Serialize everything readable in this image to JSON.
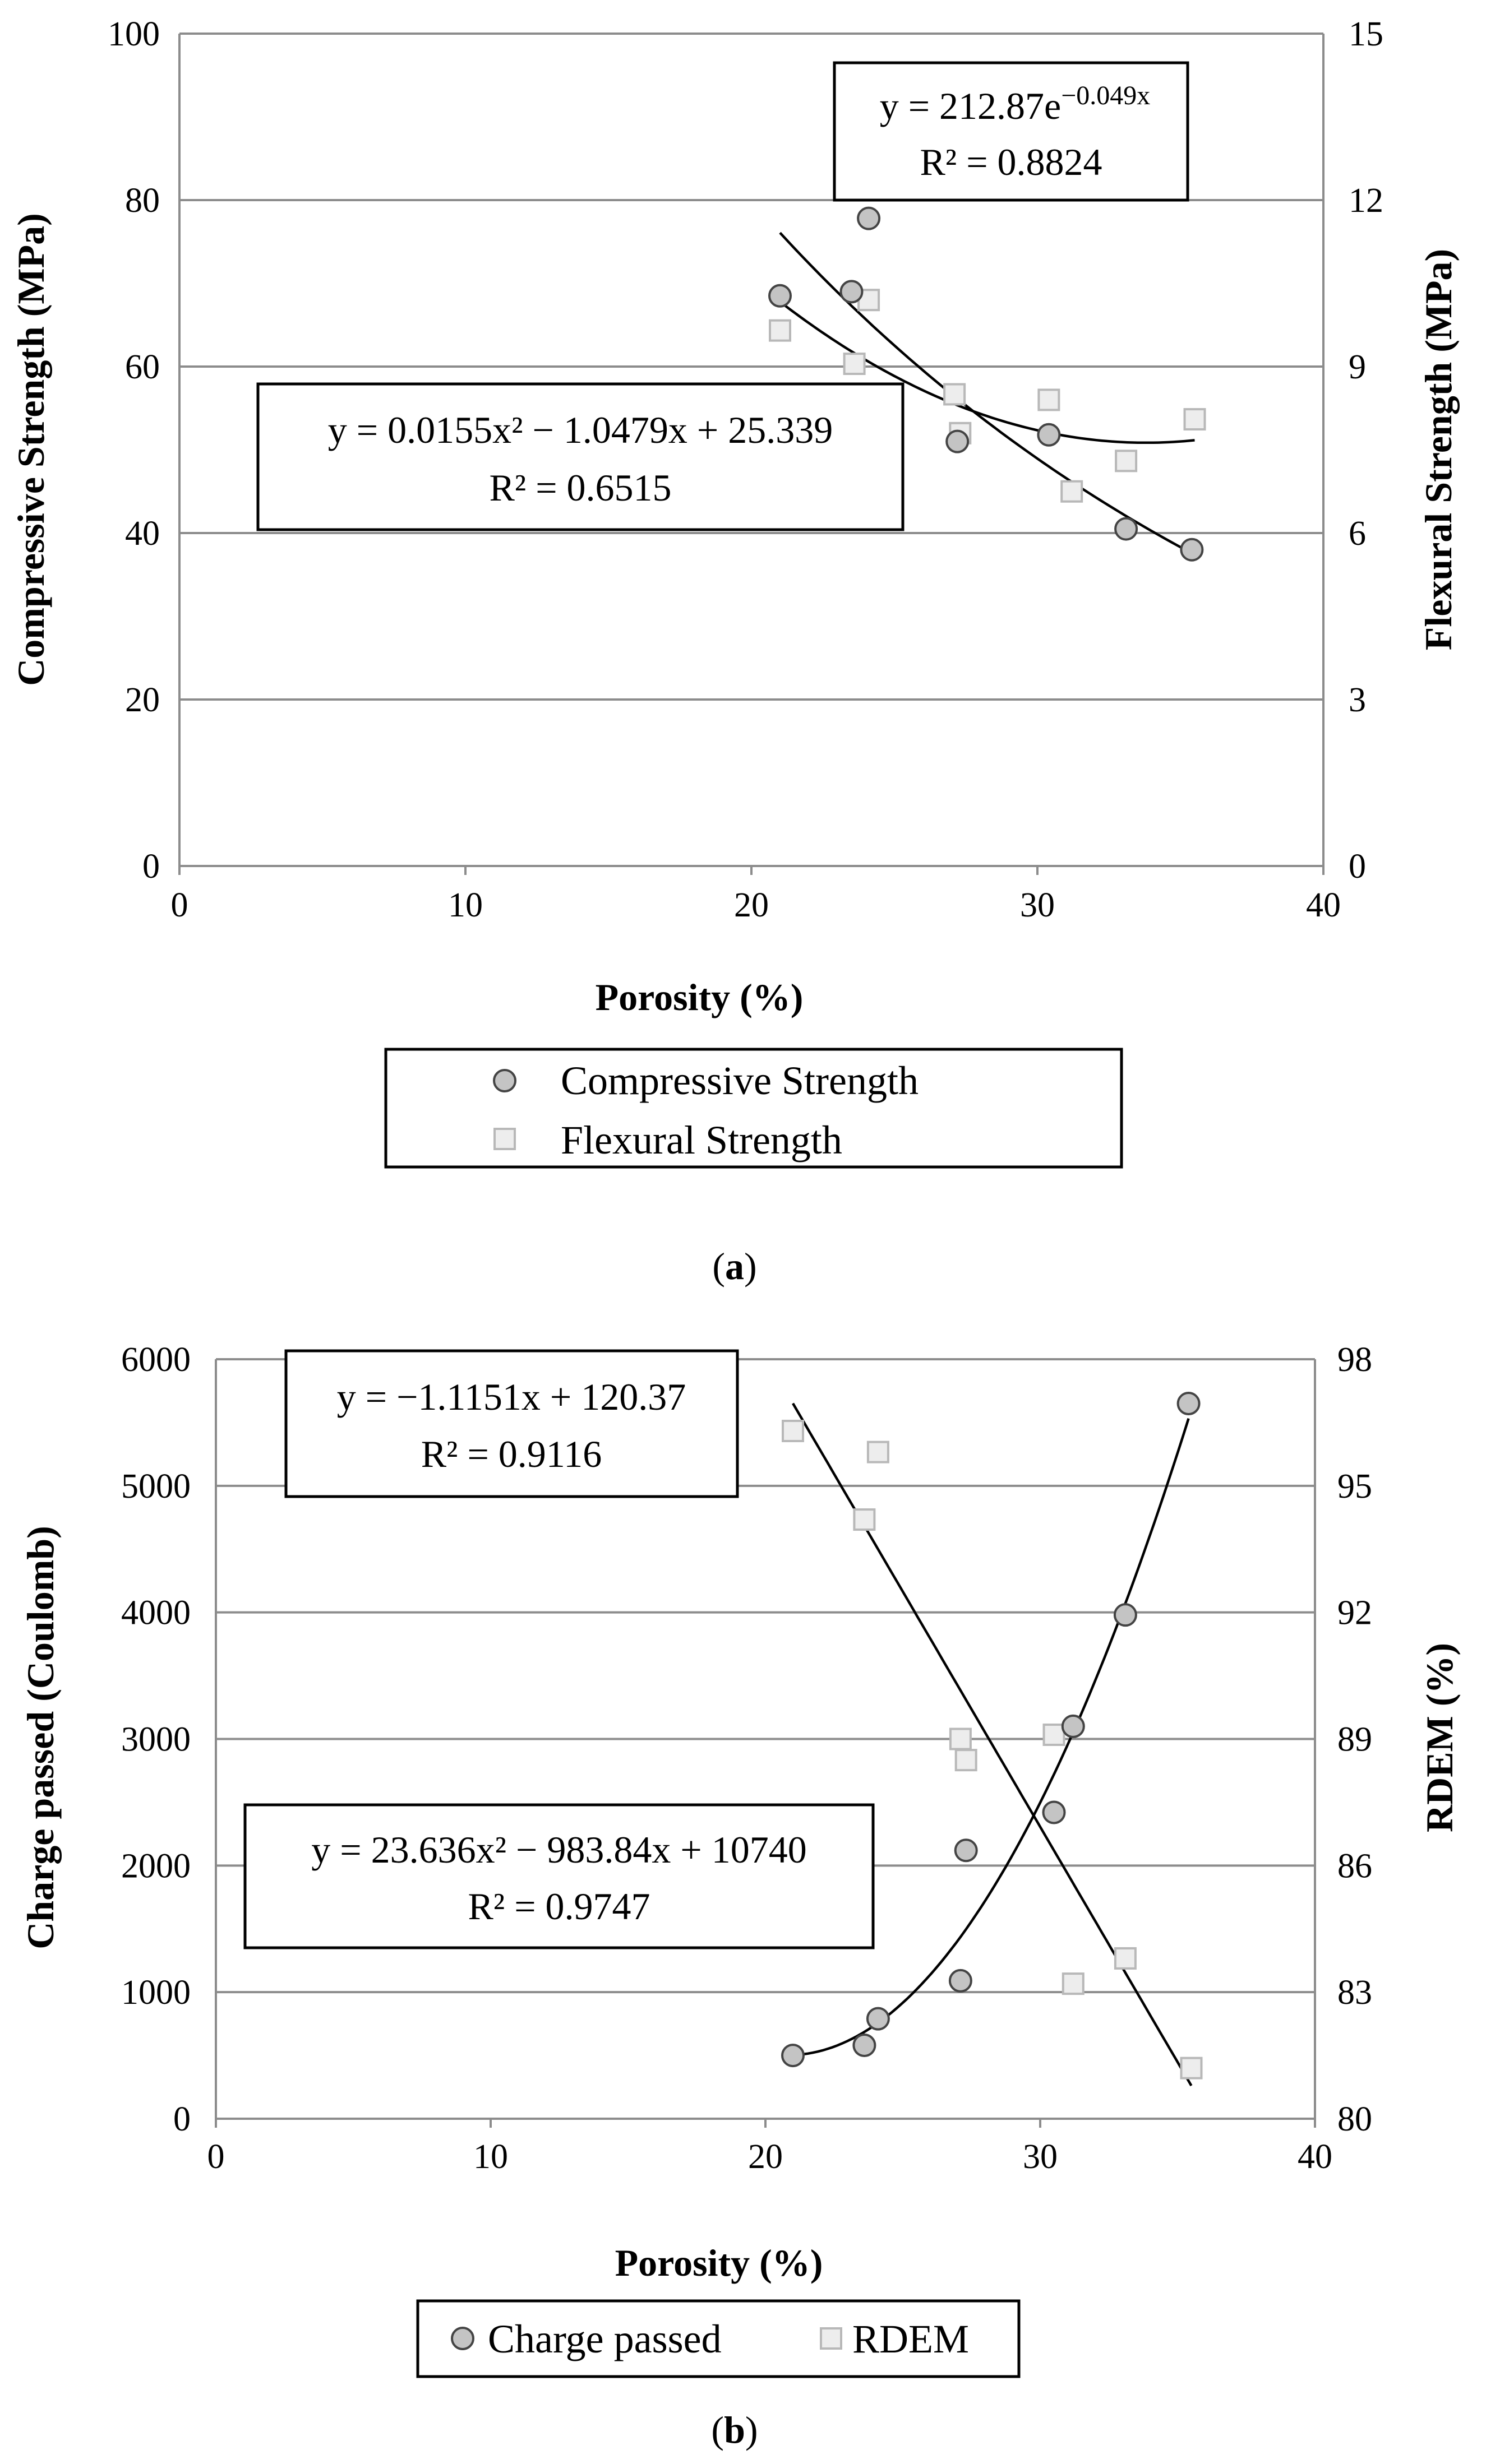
{
  "chart_data": [
    {
      "panel": "a",
      "type": "scatter",
      "caption_open": "(",
      "caption": "a",
      "caption_close": ")",
      "xlabel": "Porosity (%)",
      "ylabel": "Compressive Strength (MPa)",
      "y2label": "Flexural Strength (MPa)",
      "xlim": [
        0,
        40
      ],
      "ylim": [
        0,
        100
      ],
      "y2lim": [
        0,
        15
      ],
      "xticks": [
        0,
        10,
        20,
        30,
        40
      ],
      "yticks": [
        0,
        20,
        40,
        60,
        80,
        100
      ],
      "y2ticks": [
        0,
        3,
        6,
        9,
        12,
        15
      ],
      "grid": true,
      "legend_position": "bottom",
      "series": [
        {
          "name": "Compressive Strength",
          "marker": "circle",
          "axis": "left",
          "x": [
            21.0,
            23.5,
            24.1,
            27.2,
            30.4,
            33.1,
            35.4
          ],
          "y": [
            68.5,
            69.0,
            77.8,
            51.0,
            51.8,
            40.5,
            38.0
          ]
        },
        {
          "name": "Flexural Strength",
          "marker": "square",
          "axis": "right",
          "x": [
            21.0,
            23.6,
            24.1,
            27.1,
            27.3,
            30.4,
            31.2,
            33.1,
            35.5
          ],
          "y": [
            9.65,
            9.05,
            10.2,
            8.5,
            7.8,
            8.4,
            6.75,
            7.3,
            8.05
          ]
        }
      ],
      "trendlines": [
        {
          "series": "Compressive Strength",
          "kind": "exponential",
          "coef": [
            212.87,
            -0.049
          ],
          "xrange": [
            21.0,
            35.4
          ],
          "line1": "y = 212.87e",
          "exp": "−0.049x",
          "r2": "R² = 0.8824"
        },
        {
          "series": "Flexural Strength",
          "kind": "poly2",
          "coef": [
            0.0155,
            -1.0479,
            25.339
          ],
          "xrange": [
            21.0,
            35.5
          ],
          "line1": "y = 0.0155x² − 1.0479x + 25.339",
          "r2": "R² = 0.6515"
        }
      ]
    },
    {
      "panel": "b",
      "type": "scatter",
      "caption_open": "(",
      "caption": "b",
      "caption_close": ")",
      "xlabel": "Porosity (%)",
      "ylabel": "Charge passed (Coulomb)",
      "y2label": "RDEM (%)",
      "xlim": [
        0,
        40
      ],
      "ylim": [
        0,
        6000
      ],
      "y2lim": [
        80,
        98
      ],
      "xticks": [
        0,
        10,
        20,
        30,
        40
      ],
      "yticks": [
        0,
        1000,
        2000,
        3000,
        4000,
        5000,
        6000
      ],
      "y2ticks": [
        80,
        83,
        86,
        89,
        92,
        95,
        98
      ],
      "grid": true,
      "legend_position": "bottom",
      "series": [
        {
          "name": "Charge passed",
          "marker": "circle",
          "axis": "left",
          "x": [
            21.0,
            23.6,
            24.1,
            27.1,
            27.3,
            30.5,
            31.2,
            33.1,
            35.4
          ],
          "y": [
            500,
            580,
            790,
            1090,
            2120,
            2420,
            3100,
            3980,
            5650
          ]
        },
        {
          "name": "RDEM",
          "marker": "square",
          "axis": "right",
          "x": [
            21.0,
            23.6,
            24.1,
            27.1,
            27.3,
            30.5,
            31.2,
            33.1,
            35.5
          ],
          "y": [
            96.3,
            94.2,
            95.8,
            89.0,
            88.5,
            89.1,
            83.2,
            83.8,
            81.2
          ]
        }
      ],
      "trendlines": [
        {
          "series": "RDEM",
          "kind": "linear",
          "coef": [
            -1.1151,
            120.37
          ],
          "xrange": [
            21.0,
            35.5
          ],
          "line1": "y = −1.1151x + 120.37",
          "r2": "R² = 0.9116"
        },
        {
          "series": "Charge passed",
          "kind": "poly2",
          "coef": [
            23.636,
            -983.84,
            10740
          ],
          "xrange": [
            21.0,
            35.4
          ],
          "line1": "y = 23.636x² − 983.84x + 10740",
          "r2": "R² = 0.9747"
        }
      ]
    }
  ]
}
